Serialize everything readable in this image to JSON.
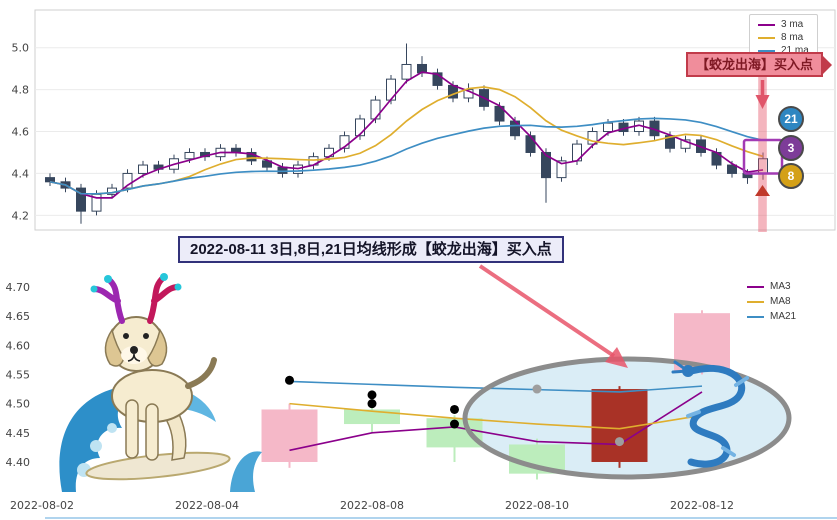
{
  "callout": {
    "text": "2022-08-11 3日,8日,21日均线形成【蛟龙出海】买入点"
  },
  "chart_data": [
    {
      "type": "candlestick",
      "panel": "daily-kline-overview",
      "title": "",
      "ylim": [
        4.13,
        5.18
      ],
      "yticks": [
        4.2,
        4.4,
        4.6,
        4.8,
        5.0
      ],
      "grid": "horizontal",
      "legend_position": "top-right",
      "legend": [
        {
          "label": "3 ma",
          "period": 3,
          "color": "#8B008B"
        },
        {
          "label": "8 ma",
          "period": 8,
          "color": "#DFAE2E"
        },
        {
          "label": "21 ma",
          "period": 21,
          "color": "#3E8EC4"
        }
      ],
      "up_color": "#ffffff",
      "down_color": "#36465D",
      "ohlc": [
        [
          4.38,
          4.4,
          4.34,
          4.36
        ],
        [
          4.36,
          4.38,
          4.31,
          4.33
        ],
        [
          4.33,
          4.35,
          4.16,
          4.22
        ],
        [
          4.22,
          4.32,
          4.2,
          4.3
        ],
        [
          4.3,
          4.35,
          4.28,
          4.33
        ],
        [
          4.33,
          4.42,
          4.31,
          4.4
        ],
        [
          4.4,
          4.46,
          4.38,
          4.44
        ],
        [
          4.44,
          4.46,
          4.4,
          4.42
        ],
        [
          4.42,
          4.49,
          4.4,
          4.47
        ],
        [
          4.47,
          4.52,
          4.45,
          4.5
        ],
        [
          4.5,
          4.52,
          4.46,
          4.48
        ],
        [
          4.48,
          4.54,
          4.46,
          4.52
        ],
        [
          4.52,
          4.54,
          4.48,
          4.5
        ],
        [
          4.5,
          4.52,
          4.44,
          4.46
        ],
        [
          4.46,
          4.48,
          4.41,
          4.43
        ],
        [
          4.43,
          4.45,
          4.38,
          4.4
        ],
        [
          4.4,
          4.46,
          4.38,
          4.44
        ],
        [
          4.44,
          4.5,
          4.42,
          4.48
        ],
        [
          4.48,
          4.54,
          4.46,
          4.52
        ],
        [
          4.52,
          4.6,
          4.5,
          4.58
        ],
        [
          4.58,
          4.68,
          4.56,
          4.66
        ],
        [
          4.66,
          4.77,
          4.64,
          4.75
        ],
        [
          4.75,
          4.87,
          4.73,
          4.85
        ],
        [
          4.85,
          5.02,
          4.83,
          4.92
        ],
        [
          4.92,
          4.96,
          4.86,
          4.88
        ],
        [
          4.88,
          4.9,
          4.8,
          4.82
        ],
        [
          4.82,
          4.84,
          4.74,
          4.76
        ],
        [
          4.76,
          4.83,
          4.74,
          4.8
        ],
        [
          4.8,
          4.82,
          4.7,
          4.72
        ],
        [
          4.72,
          4.74,
          4.63,
          4.65
        ],
        [
          4.65,
          4.67,
          4.56,
          4.58
        ],
        [
          4.58,
          4.6,
          4.48,
          4.5
        ],
        [
          4.5,
          4.52,
          4.26,
          4.38
        ],
        [
          4.38,
          4.48,
          4.36,
          4.46
        ],
        [
          4.46,
          4.56,
          4.44,
          4.54
        ],
        [
          4.54,
          4.62,
          4.52,
          4.6
        ],
        [
          4.6,
          4.66,
          4.58,
          4.64
        ],
        [
          4.64,
          4.66,
          4.58,
          4.6
        ],
        [
          4.6,
          4.67,
          4.58,
          4.65
        ],
        [
          4.65,
          4.67,
          4.56,
          4.58
        ],
        [
          4.58,
          4.6,
          4.5,
          4.52
        ],
        [
          4.52,
          4.58,
          4.5,
          4.56
        ],
        [
          4.56,
          4.58,
          4.48,
          4.5
        ],
        [
          4.5,
          4.52,
          4.42,
          4.44
        ],
        [
          4.44,
          4.46,
          4.38,
          4.4
        ],
        [
          4.4,
          4.42,
          4.35,
          4.38
        ],
        [
          4.4,
          4.5,
          4.37,
          4.47
        ]
      ],
      "buy_index": 46,
      "annotations": {
        "buy_point": "【蛟龙出海】买入点"
      },
      "ma_badges": [
        {
          "label": "21",
          "color": "#2E86C1",
          "value": 4.66
        },
        {
          "label": "3",
          "color": "#7D3C98",
          "value": 4.52
        },
        {
          "label": "8",
          "color": "#D4A017",
          "value": 4.39
        }
      ]
    },
    {
      "type": "candlestick",
      "panel": "buy-point-zoom",
      "title": "",
      "ylim": [
        4.34,
        4.729
      ],
      "yticks": [
        4.4,
        4.45,
        4.5,
        4.55,
        4.6,
        4.65,
        4.7
      ],
      "x": [
        "2022-08-02",
        "2022-08-03",
        "2022-08-04",
        "2022-08-05",
        "2022-08-08",
        "2022-08-09",
        "2022-08-10",
        "2022-08-11",
        "2022-08-12"
      ],
      "xticks": [
        "2022-08-02",
        "2022-08-04",
        "2022-08-08",
        "2022-08-10",
        "2022-08-12"
      ],
      "grid": "off",
      "legend_position": "top-right",
      "legend": [
        {
          "label": "MA3",
          "color": "#8B008B"
        },
        {
          "label": "MA8",
          "color": "#DFAE2E"
        },
        {
          "label": "MA21",
          "color": "#3E8EC4"
        }
      ],
      "candles": [
        {
          "date": "2022-08-05",
          "open": 4.4,
          "high": 4.5,
          "low": 4.39,
          "close": 4.49,
          "color": "#F5B8C8"
        },
        {
          "date": "2022-08-08",
          "open": 4.49,
          "high": 4.5,
          "low": 4.45,
          "close": 4.465,
          "color": "#BCEDBC"
        },
        {
          "date": "2022-08-09",
          "open": 4.475,
          "high": 4.48,
          "low": 4.4,
          "close": 4.425,
          "color": "#BCEDBC"
        },
        {
          "date": "2022-08-10",
          "open": 4.43,
          "high": 4.44,
          "low": 4.37,
          "close": 4.38,
          "color": "#BCEDBC"
        },
        {
          "date": "2022-08-11",
          "open": 4.4,
          "high": 4.53,
          "low": 4.39,
          "close": 4.525,
          "color": "#A93226"
        },
        {
          "date": "2022-08-12",
          "open": 4.555,
          "high": 4.66,
          "low": 4.55,
          "close": 4.655,
          "color": "#F5B8C8"
        }
      ],
      "series": [
        {
          "name": "MA3",
          "color": "#8B008B",
          "values": [
            null,
            null,
            null,
            4.42,
            4.45,
            4.46,
            4.435,
            4.43,
            4.52
          ]
        },
        {
          "name": "MA8",
          "color": "#DFAE2E",
          "values": [
            null,
            null,
            null,
            4.5,
            4.487,
            4.475,
            4.465,
            4.457,
            4.48
          ]
        },
        {
          "name": "MA21",
          "color": "#3E8EC4",
          "values": [
            null,
            null,
            null,
            4.538,
            4.533,
            4.528,
            4.524,
            4.52,
            4.53
          ]
        }
      ],
      "markers": [
        {
          "x": "2022-08-05",
          "value": 4.54,
          "color": "#000000"
        },
        {
          "x": "2022-08-08",
          "value": 4.515,
          "color": "#000000"
        },
        {
          "x": "2022-08-08",
          "value": 4.5,
          "color": "#000000"
        },
        {
          "x": "2022-08-09",
          "value": 4.49,
          "color": "#000000"
        },
        {
          "x": "2022-08-09",
          "value": 4.465,
          "color": "#000000"
        },
        {
          "x": "2022-08-10",
          "value": 4.525,
          "color": "#9E9E9E"
        },
        {
          "x": "2022-08-11",
          "value": 4.435,
          "color": "#9E9E9E"
        }
      ],
      "highlight": {
        "shape": "ellipse",
        "around": "2022-08-11"
      }
    }
  ]
}
